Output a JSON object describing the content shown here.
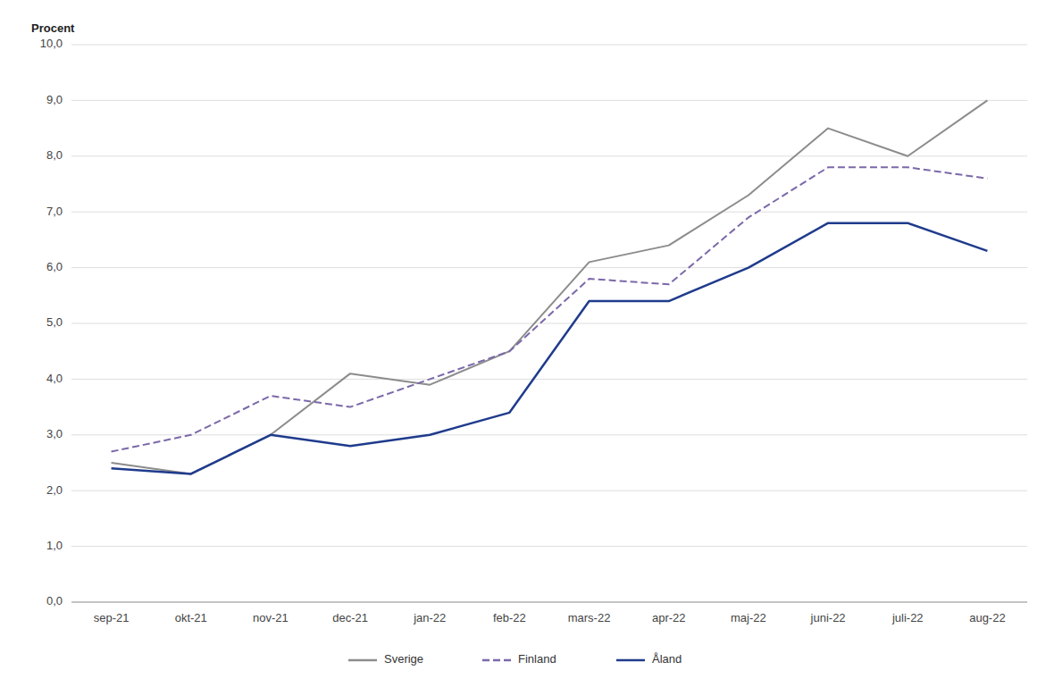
{
  "chart_data": {
    "type": "line",
    "ylabel": "Procent",
    "categories": [
      "sep-21",
      "okt-21",
      "nov-21",
      "dec-21",
      "jan-22",
      "feb-22",
      "mars-22",
      "apr-22",
      "maj-22",
      "juni-22",
      "juli-22",
      "aug-22"
    ],
    "series": [
      {
        "name": "Sverige",
        "color": "#8C8C8C",
        "line_style": "solid",
        "values": [
          2.5,
          2.3,
          3.0,
          4.1,
          3.9,
          4.5,
          6.1,
          6.4,
          7.3,
          8.5,
          8.0,
          9.0
        ]
      },
      {
        "name": "Finland",
        "color": "#7B68AA",
        "line_style": "dashed",
        "values": [
          2.7,
          3.0,
          3.7,
          3.5,
          4.0,
          4.5,
          5.8,
          5.7,
          6.9,
          7.8,
          7.8,
          7.6
        ]
      },
      {
        "name": "Åland",
        "color": "#1F3B8C",
        "line_style": "solid",
        "values": [
          2.4,
          2.3,
          3.0,
          2.8,
          3.0,
          3.4,
          5.4,
          5.4,
          6.0,
          6.8,
          6.8,
          6.3
        ]
      }
    ],
    "ylim": [
      0.0,
      10.0
    ],
    "yticks": [
      {
        "value": 0.0,
        "label": "0,0"
      },
      {
        "value": 1.0,
        "label": "1,0"
      },
      {
        "value": 2.0,
        "label": "2,0"
      },
      {
        "value": 3.0,
        "label": "3,0"
      },
      {
        "value": 4.0,
        "label": "4,0"
      },
      {
        "value": 5.0,
        "label": "5,0"
      },
      {
        "value": 6.0,
        "label": "6,0"
      },
      {
        "value": 7.0,
        "label": "7,0"
      },
      {
        "value": 8.0,
        "label": "8,0"
      },
      {
        "value": 9.0,
        "label": "9,0"
      },
      {
        "value": 10.0,
        "label": "10,0"
      }
    ],
    "grid": true,
    "legend": "bottom"
  }
}
